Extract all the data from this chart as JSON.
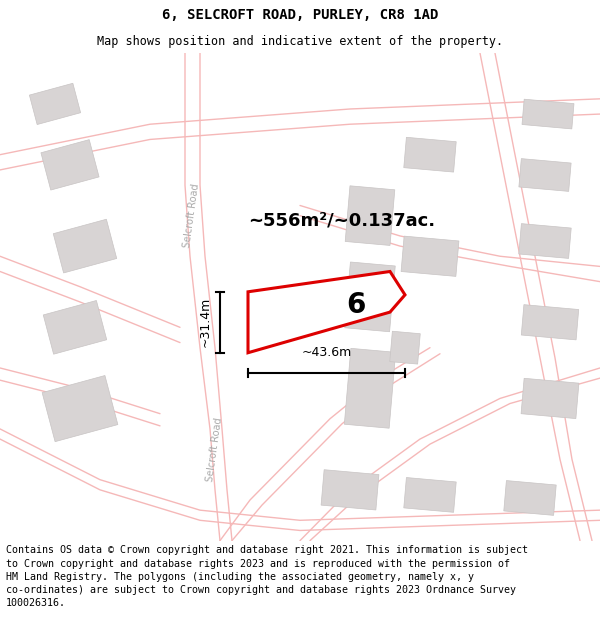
{
  "title": "6, SELCROFT ROAD, PURLEY, CR8 1AD",
  "subtitle": "Map shows position and indicative extent of the property.",
  "footer": "Contains OS data © Crown copyright and database right 2021. This information is subject to Crown copyright and database rights 2023 and is reproduced with the permission of HM Land Registry. The polygons (including the associated geometry, namely x, y co-ordinates) are subject to Crown copyright and database rights 2023 Ordnance Survey 100026316.",
  "area_text": "~556m²/~0.137ac.",
  "width_text": "~43.6m",
  "height_text": "~31.4m",
  "number_text": "6",
  "red_color": "#dd0000",
  "road_color": "#f5b8b8",
  "building_color": "#d8d4d4",
  "building_edge": "#c8c4c4",
  "road_label": "Selcroft Road",
  "title_fontsize": 10,
  "subtitle_fontsize": 8.5,
  "footer_fontsize": 7.2
}
